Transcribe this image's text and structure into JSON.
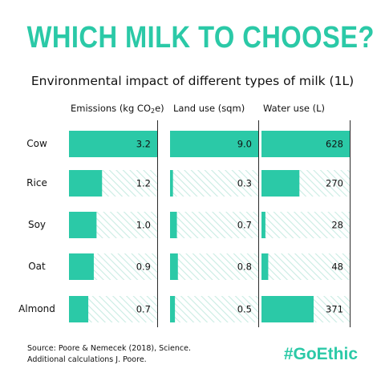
{
  "title": "WHICH MILK TO CHOOSE?",
  "subtitle": "Environmental impact of different types of milk (1L)",
  "columns": [
    {
      "header": "Emissions (kg CO",
      "header_sub": "2",
      "header_tail": "e)"
    },
    {
      "header": "Land use (sqm)",
      "header_sub": "",
      "header_tail": ""
    },
    {
      "header": "Water use (L)",
      "header_sub": "",
      "header_tail": ""
    }
  ],
  "chart_data": {
    "type": "bar",
    "categories": [
      "Cow",
      "Rice",
      "Soy",
      "Oat",
      "Almond"
    ],
    "series": [
      {
        "name": "Emissions (kg CO2e)",
        "values": [
          3.2,
          1.2,
          1.0,
          0.9,
          0.7
        ],
        "labels": [
          "3.2",
          "1.2",
          "1.0",
          "0.9",
          "0.7"
        ],
        "max": 3.2
      },
      {
        "name": "Land use (sqm)",
        "values": [
          9.0,
          0.3,
          0.7,
          0.8,
          0.5
        ],
        "labels": [
          "9.0",
          "0.3",
          "0.7",
          "0.8",
          "0.5"
        ],
        "max": 9.0
      },
      {
        "name": "Water use (L)",
        "values": [
          628,
          270,
          28,
          48,
          371
        ],
        "labels": [
          "628",
          "270",
          "28",
          "48",
          "371"
        ],
        "max": 628
      }
    ],
    "colors": {
      "bar": "#2bc9a7",
      "hatch": "#c9ece3"
    }
  },
  "source": {
    "line1": "Source: Poore & Nemecek (2018), Science.",
    "line2": "Additional calculations J. Poore."
  },
  "brand": "#GoEthic"
}
